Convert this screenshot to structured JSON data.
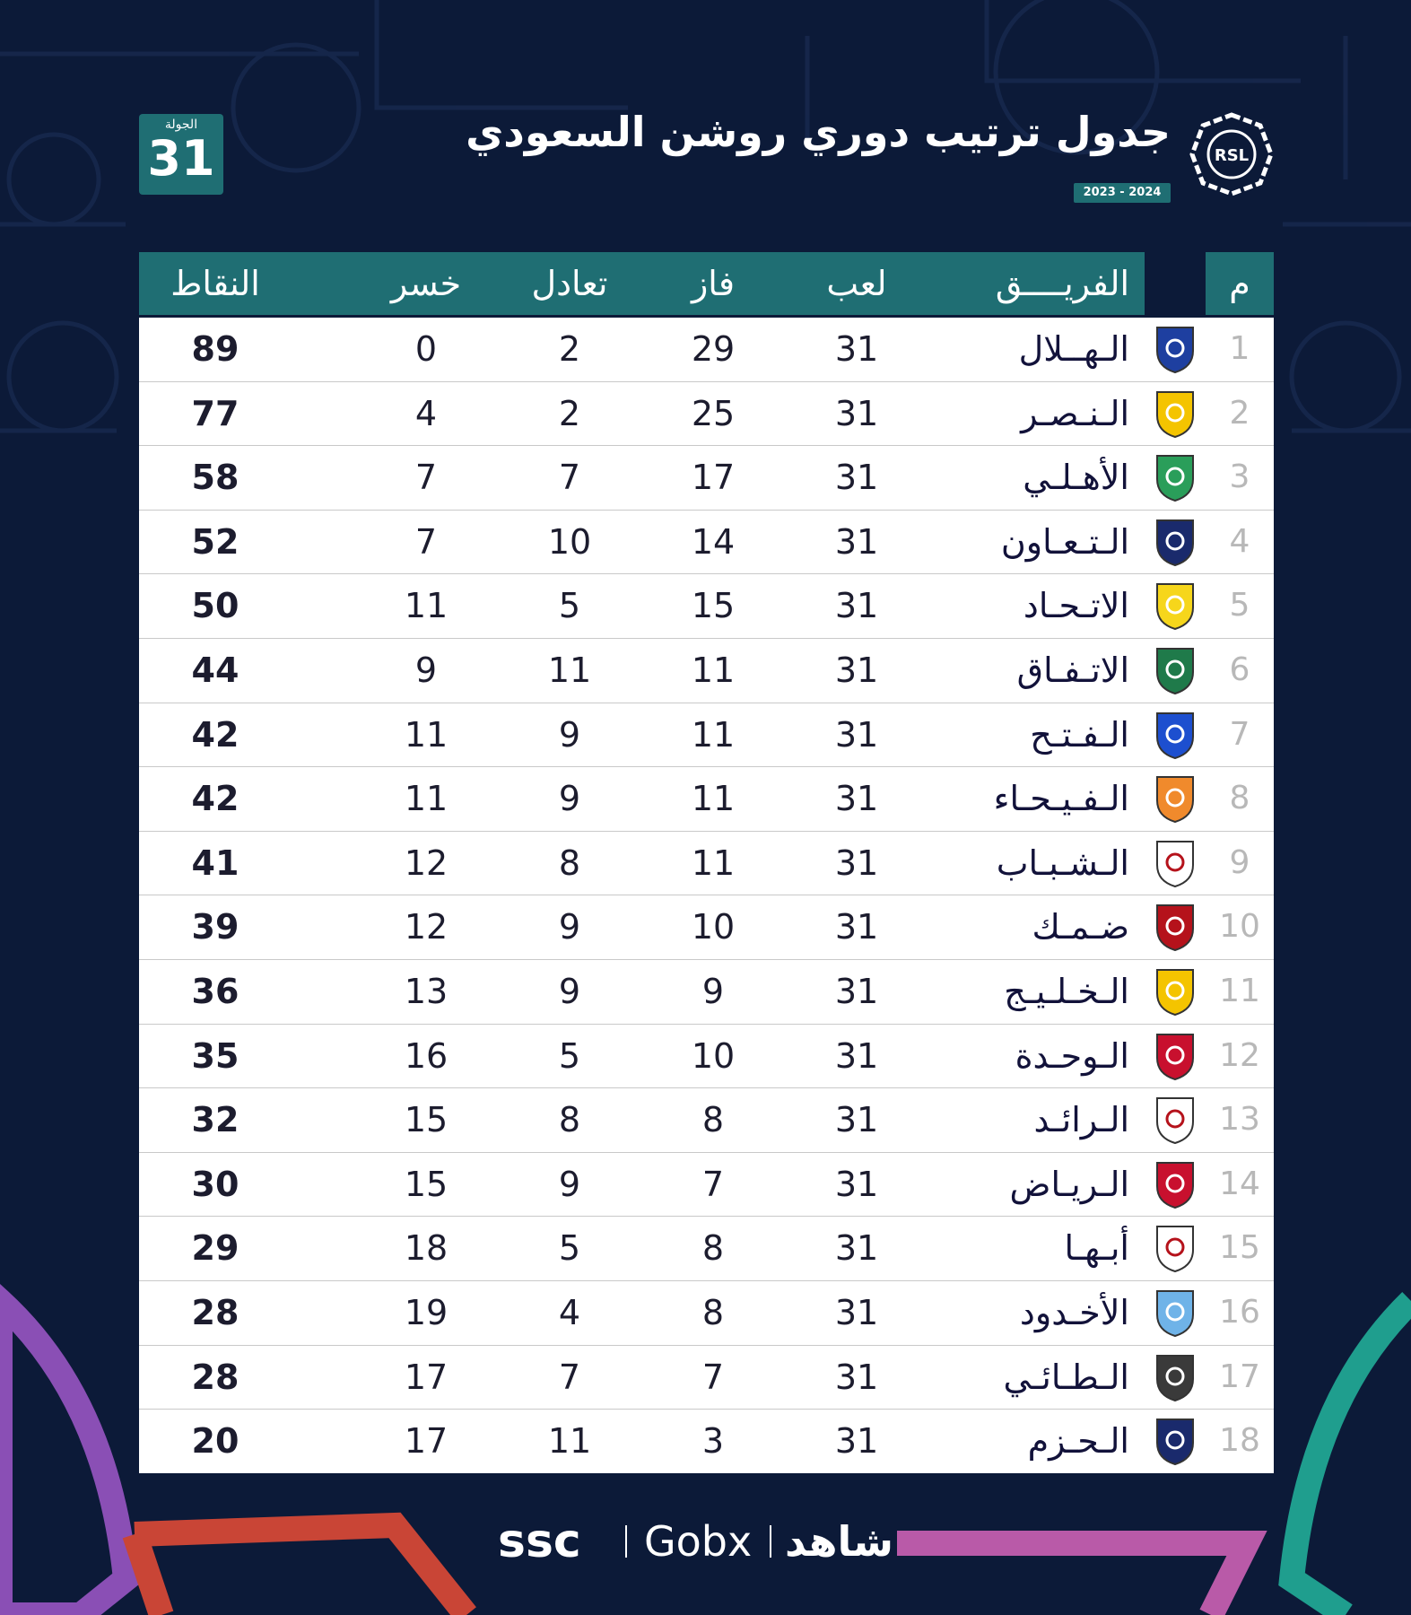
{
  "header": {
    "title": "جدول ترتيب دوري روشن السعودي",
    "season": "2023 - 2024",
    "round_label": "الجولة",
    "round_number": "31",
    "logo_text": "RSL"
  },
  "table": {
    "columns": {
      "rank": "م",
      "team": "الفريــــق",
      "played": "لعب",
      "won": "فاز",
      "drawn": "تعادل",
      "lost": "خسر",
      "points": "النقاط"
    },
    "rows": [
      {
        "rank": "1",
        "team": "الـهــلال",
        "played": "31",
        "won": "29",
        "drawn": "2",
        "lost": "0",
        "points": "89",
        "logo_color": "#1e3fa0",
        "logo_icon": "hilal-crest-icon"
      },
      {
        "rank": "2",
        "team": "الـنـصـر",
        "played": "31",
        "won": "25",
        "drawn": "2",
        "lost": "4",
        "points": "77",
        "logo_color": "#f4c400",
        "logo_icon": "nassr-crest-icon"
      },
      {
        "rank": "3",
        "team": "الأهـلـي",
        "played": "31",
        "won": "17",
        "drawn": "7",
        "lost": "7",
        "points": "58",
        "logo_color": "#2a9e5a",
        "logo_icon": "ahli-crest-icon"
      },
      {
        "rank": "4",
        "team": "الـتـعـاون",
        "played": "31",
        "won": "14",
        "drawn": "10",
        "lost": "7",
        "points": "52",
        "logo_color": "#1a2a6c",
        "logo_icon": "taawoun-crest-icon"
      },
      {
        "rank": "5",
        "team": "الاتـحـاد",
        "played": "31",
        "won": "15",
        "drawn": "5",
        "lost": "11",
        "points": "50",
        "logo_color": "#f6d61b",
        "logo_icon": "ittihad-crest-icon"
      },
      {
        "rank": "6",
        "team": "الاتـفـاق",
        "played": "31",
        "won": "11",
        "drawn": "11",
        "lost": "9",
        "points": "44",
        "logo_color": "#1f7a4a",
        "logo_icon": "ettifaq-crest-icon"
      },
      {
        "rank": "7",
        "team": "الـفـتـح",
        "played": "31",
        "won": "11",
        "drawn": "9",
        "lost": "11",
        "points": "42",
        "logo_color": "#1d4fcf",
        "logo_icon": "fateh-crest-icon"
      },
      {
        "rank": "8",
        "team": "الـفـيـحـاء",
        "played": "31",
        "won": "11",
        "drawn": "9",
        "lost": "11",
        "points": "42",
        "logo_color": "#f08a2c",
        "logo_icon": "feiha-crest-icon"
      },
      {
        "rank": "9",
        "team": "الـشـبـاب",
        "played": "31",
        "won": "11",
        "drawn": "8",
        "lost": "12",
        "points": "41",
        "logo_color": "#ffffff",
        "logo_icon": "shabab-crest-icon"
      },
      {
        "rank": "10",
        "team": "ضـمـك",
        "played": "31",
        "won": "10",
        "drawn": "9",
        "lost": "12",
        "points": "39",
        "logo_color": "#b5121b",
        "logo_icon": "damac-crest-icon"
      },
      {
        "rank": "11",
        "team": "الـخـلـيـج",
        "played": "31",
        "won": "9",
        "drawn": "9",
        "lost": "13",
        "points": "36",
        "logo_color": "#f4c400",
        "logo_icon": "khaleej-crest-icon"
      },
      {
        "rank": "12",
        "team": "الـوحـدة",
        "played": "31",
        "won": "10",
        "drawn": "5",
        "lost": "16",
        "points": "35",
        "logo_color": "#c8102e",
        "logo_icon": "wehda-crest-icon"
      },
      {
        "rank": "13",
        "team": "الـرائـد",
        "played": "31",
        "won": "8",
        "drawn": "8",
        "lost": "15",
        "points": "32",
        "logo_color": "#ffffff",
        "logo_icon": "raed-crest-icon"
      },
      {
        "rank": "14",
        "team": "الـريـاض",
        "played": "31",
        "won": "7",
        "drawn": "9",
        "lost": "15",
        "points": "30",
        "logo_color": "#c8102e",
        "logo_icon": "riyadh-crest-icon"
      },
      {
        "rank": "15",
        "team": "أبـهـا",
        "played": "31",
        "won": "8",
        "drawn": "5",
        "lost": "18",
        "points": "29",
        "logo_color": "#ffffff",
        "logo_icon": "abha-crest-icon"
      },
      {
        "rank": "16",
        "team": "الأخـدود",
        "played": "31",
        "won": "8",
        "drawn": "4",
        "lost": "19",
        "points": "28",
        "logo_color": "#6fb3e8",
        "logo_icon": "okhdood-crest-icon"
      },
      {
        "rank": "17",
        "team": "الـطـائـي",
        "played": "31",
        "won": "7",
        "drawn": "7",
        "lost": "17",
        "points": "28",
        "logo_color": "#3a3a3a",
        "logo_icon": "tai-crest-icon"
      },
      {
        "rank": "18",
        "team": "الـحـزم",
        "played": "31",
        "won": "3",
        "drawn": "11",
        "lost": "17",
        "points": "20",
        "logo_color": "#1a2a6c",
        "logo_icon": "hazem-crest-icon"
      }
    ]
  },
  "footer": {
    "brand_ssc": "ssc",
    "brand_gobx": "Gobx",
    "brand_shahid": "شاهد"
  }
}
